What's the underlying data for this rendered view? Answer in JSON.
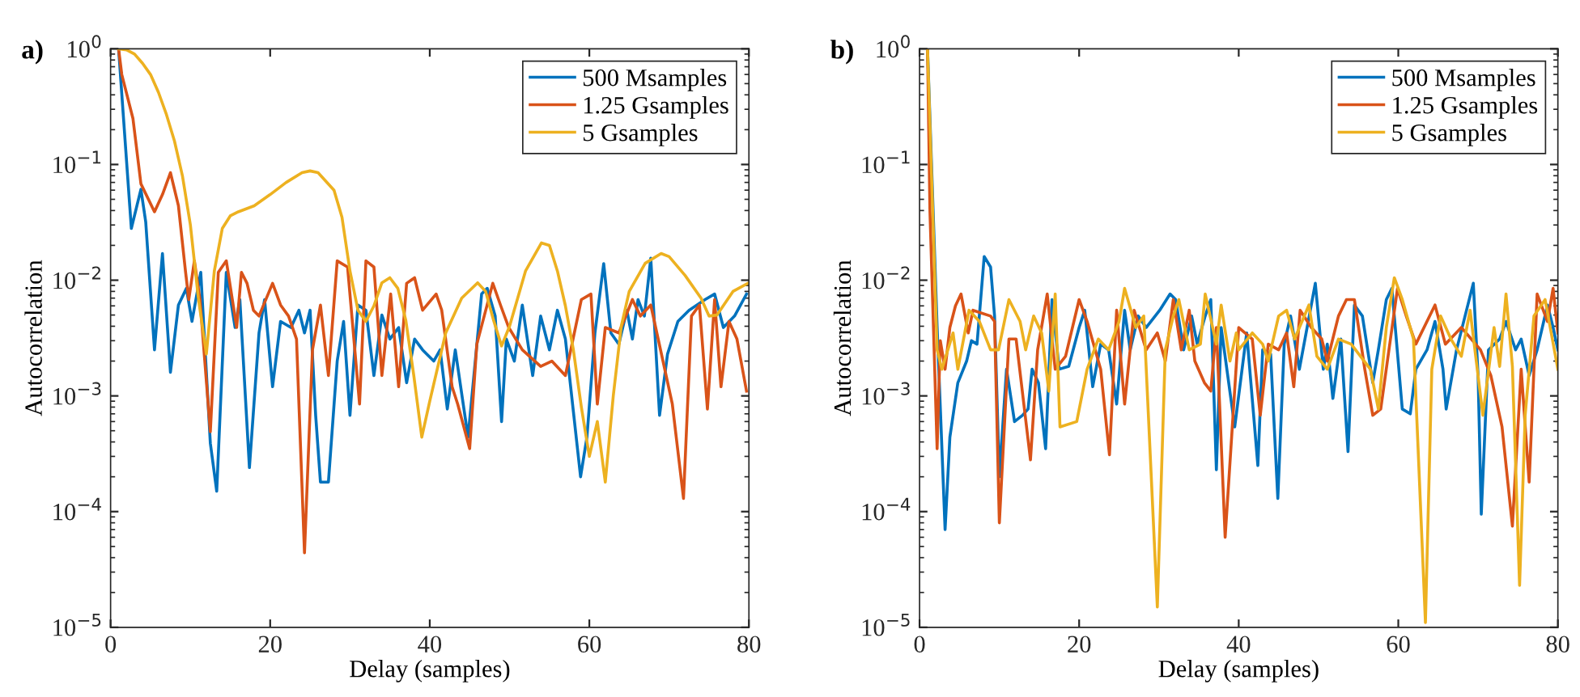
{
  "chart_data": [
    {
      "type": "line",
      "title": "a)",
      "xlabel": "Delay (samples)",
      "ylabel": "Autocorrelation",
      "log": "y",
      "legend": "top right",
      "line_style": "solid",
      "xlim": [
        0,
        80
      ],
      "ylim": [
        1e-05,
        1
      ],
      "xticks": [
        0,
        20,
        40,
        60,
        80
      ],
      "yticks": [
        {
          "value": 1e-05,
          "label": "10$^{−5}$"
        },
        {
          "value": 0.0001,
          "label": "10$^{−4}$"
        },
        {
          "value": 0.001,
          "label": "10$^{−3}$"
        },
        {
          "value": 0.01,
          "label": "10$^{−2}$"
        },
        {
          "value": 0.1,
          "label": "10$^{−1}$"
        },
        {
          "value": 1,
          "label": "10$^{0}$"
        }
      ],
      "series": [
        {
          "name": "500 Msamples",
          "color": "#0072bd",
          "x": [
            1,
            2.6,
            3.8,
            4.4,
            5.5,
            6.5,
            7.5,
            8.5,
            9.5,
            10.2,
            11.3,
            12.5,
            13.3,
            14.5,
            15.6,
            16.2,
            17.4,
            18.6,
            19.3,
            20.3,
            21.3,
            22.6,
            23.6,
            24.3,
            25,
            25.7,
            26.3,
            27.3,
            28.4,
            29.2,
            30,
            31,
            32,
            33,
            34,
            35,
            36.1,
            37.1,
            38.1,
            39.1,
            40.5,
            41.3,
            42.2,
            43.2,
            44.8,
            46.5,
            47.2,
            48.2,
            49,
            49.6,
            50.6,
            51.6,
            52.9,
            53.9,
            55,
            56,
            57,
            58.9,
            59.7,
            60.7,
            61.8,
            62.7,
            63.7,
            64.7,
            65.4,
            66.1,
            66.9,
            67.7,
            68.8,
            69.8,
            71.1,
            72.5,
            74.5,
            75.7,
            76.8,
            78.2,
            79.7
          ],
          "values": [
            1.0,
            0.028,
            0.061,
            0.032,
            0.0025,
            0.017,
            0.0016,
            0.0061,
            0.0085,
            0.0044,
            0.0117,
            0.00039,
            0.00015,
            0.0117,
            0.0039,
            0.0068,
            0.00024,
            0.0035,
            0.0068,
            0.0012,
            0.0044,
            0.0039,
            0.0055,
            0.0035,
            0.0055,
            0.00068,
            0.00018,
            0.00018,
            0.002,
            0.0044,
            0.00068,
            0.0061,
            0.0055,
            0.0015,
            0.005,
            0.0031,
            0.0039,
            0.0013,
            0.0031,
            0.0025,
            0.002,
            0.0025,
            0.00077,
            0.0025,
            0.00044,
            0.0076,
            0.0085,
            0.0049,
            0.0006,
            0.0031,
            0.002,
            0.0061,
            0.0015,
            0.0049,
            0.0025,
            0.0055,
            0.0031,
            0.0002,
            0.00044,
            0.0035,
            0.0139,
            0.0035,
            0.0028,
            0.0055,
            0.0031,
            0.0068,
            0.0049,
            0.0155,
            0.00068,
            0.0023,
            0.0044,
            0.0055,
            0.0068,
            0.0076,
            0.0039,
            0.0049,
            0.0076
          ]
        },
        {
          "name": "1.25 Gsamples",
          "color": "#d95319",
          "x": [
            1,
            1.4,
            2.8,
            3.8,
            5.5,
            6.5,
            7.5,
            8.5,
            9.4,
            9.8,
            10.5,
            11.2,
            12.5,
            13.5,
            14.5,
            15.8,
            16.4,
            17.1,
            17.9,
            18.6,
            20.3,
            21.3,
            22.3,
            23.3,
            24.3,
            25.3,
            26.3,
            27.3,
            28.4,
            29.7,
            31.2,
            32,
            33,
            34,
            35.1,
            36.1,
            37.1,
            38.1,
            39.1,
            40.8,
            41.5,
            42.8,
            43.5,
            45,
            45.9,
            47.9,
            48.9,
            49.9,
            51.6,
            53.9,
            55.3,
            57,
            59,
            60.2,
            61,
            62,
            63.7,
            65.4,
            66.4,
            67.7,
            70.4,
            71.8,
            72.8,
            73.8,
            74.8,
            75.7,
            76.5,
            77.5,
            78.5,
            79.7
          ],
          "values": [
            1.0,
            0.6,
            0.25,
            0.068,
            0.039,
            0.055,
            0.085,
            0.044,
            0.0117,
            0.0068,
            0.0147,
            0.0068,
            0.00049,
            0.0117,
            0.0147,
            0.0039,
            0.0117,
            0.0094,
            0.0055,
            0.0049,
            0.0094,
            0.0061,
            0.0049,
            0.0031,
            4.4e-05,
            0.0025,
            0.0061,
            0.0015,
            0.0147,
            0.013,
            0.00085,
            0.0147,
            0.013,
            0.0015,
            0.0076,
            0.0012,
            0.0094,
            0.0105,
            0.0055,
            0.0076,
            0.0055,
            0.0012,
            0.00085,
            0.00035,
            0.0028,
            0.0094,
            0.006,
            0.0039,
            0.0025,
            0.0018,
            0.002,
            0.0015,
            0.0068,
            0.0076,
            0.00085,
            0.0039,
            0.0035,
            0.0068,
            0.0049,
            0.0061,
            0.00085,
            0.00013,
            0.0049,
            0.0061,
            0.00077,
            0.0068,
            0.0012,
            0.0044,
            0.0031,
            0.0011
          ]
        },
        {
          "name": "5 Gsamples",
          "color": "#edb120",
          "x": [
            1,
            2,
            3,
            4,
            5,
            6,
            7,
            8,
            9,
            10,
            11,
            12,
            13,
            14,
            15,
            16,
            18,
            20,
            22,
            24,
            25,
            26,
            28,
            29,
            30,
            31,
            32,
            33,
            34,
            35,
            36,
            37,
            38,
            39,
            40,
            42,
            44,
            46,
            47,
            48,
            49,
            50,
            52,
            54,
            55,
            56,
            57,
            58,
            59,
            60,
            61,
            62,
            63,
            64,
            65,
            67,
            69,
            70,
            72,
            74,
            75,
            76,
            78,
            80
          ],
          "values": [
            1.0,
            0.98,
            0.9,
            0.75,
            0.6,
            0.42,
            0.27,
            0.16,
            0.08,
            0.03,
            0.007,
            0.0023,
            0.012,
            0.028,
            0.036,
            0.039,
            0.044,
            0.055,
            0.07,
            0.085,
            0.088,
            0.085,
            0.06,
            0.035,
            0.012,
            0.0055,
            0.0044,
            0.006,
            0.0095,
            0.0105,
            0.0085,
            0.0045,
            0.0015,
            0.00044,
            0.0009,
            0.0035,
            0.007,
            0.0095,
            0.008,
            0.0045,
            0.0027,
            0.004,
            0.012,
            0.021,
            0.02,
            0.012,
            0.006,
            0.0025,
            0.0008,
            0.0003,
            0.0006,
            0.00018,
            0.001,
            0.004,
            0.008,
            0.014,
            0.017,
            0.016,
            0.011,
            0.007,
            0.0049,
            0.005,
            0.008,
            0.0095
          ]
        }
      ]
    },
    {
      "type": "line",
      "title": "b)",
      "xlabel": "Delay (samples)",
      "ylabel": "Autocorrelation",
      "log": "y",
      "legend": "top right",
      "line_style": "solid",
      "xlim": [
        0,
        80
      ],
      "ylim": [
        1e-05,
        1
      ],
      "xticks": [
        0,
        20,
        40,
        60,
        80
      ],
      "yticks": [
        {
          "value": 1e-05,
          "label": "10$^{−5}$"
        },
        {
          "value": 0.0001,
          "label": "10$^{−4}$"
        },
        {
          "value": 0.001,
          "label": "10$^{−3}$"
        },
        {
          "value": 0.01,
          "label": "10$^{−2}$"
        },
        {
          "value": 0.1,
          "label": "10$^{−1}$"
        },
        {
          "value": 1,
          "label": "10$^{0}$"
        }
      ],
      "series": [
        {
          "name": "500 Msamples",
          "color": "#0072bd",
          "x": [
            1,
            2.2,
            3.2,
            3.8,
            4.8,
            5.9,
            6.5,
            7.2,
            8.1,
            8.9,
            9.4,
            10,
            10.9,
            11.9,
            12.9,
            13.6,
            14.1,
            14.9,
            15.8,
            16.6,
            17.5,
            18.7,
            20,
            20.7,
            21.7,
            22.7,
            23.7,
            24.7,
            25.7,
            26.4,
            27.4,
            28.4,
            30.1,
            31.4,
            32.1,
            33.1,
            34.1,
            34.8,
            35.8,
            36.5,
            37.2,
            37.8,
            39.5,
            41,
            42.4,
            43,
            44,
            44.9,
            45.7,
            46.5,
            47.6,
            49.6,
            50.6,
            51.1,
            51.8,
            52.8,
            53.7,
            54.5,
            55.5,
            56.8,
            57.5,
            58.5,
            59.2,
            60.5,
            61.5,
            62.2,
            63.6,
            64.6,
            65.6,
            66,
            67.3,
            69.4,
            70,
            70.4,
            71.3,
            72.7,
            73.5,
            74.7,
            75.4,
            76.4,
            77.4,
            78.7,
            79.4,
            80
          ],
          "values": [
            1.0,
            0.004,
            7e-05,
            0.00044,
            0.0013,
            0.002,
            0.003,
            0.0028,
            0.016,
            0.013,
            0.0049,
            0.0002,
            0.0017,
            0.0006,
            0.00068,
            0.00077,
            0.0017,
            0.0013,
            0.00035,
            0.0068,
            0.0017,
            0.0018,
            0.0039,
            0.0055,
            0.0012,
            0.0028,
            0.0025,
            0.00085,
            0.0055,
            0.0025,
            0.0049,
            0.0039,
            0.0055,
            0.0076,
            0.0068,
            0.0025,
            0.0049,
            0.0028,
            0.0049,
            0.0068,
            0.00023,
            0.0039,
            0.00054,
            0.0035,
            0.00025,
            0.0025,
            0.0023,
            0.00013,
            0.0028,
            0.0049,
            0.0017,
            0.0094,
            0.0017,
            0.0028,
            0.00095,
            0.0031,
            0.00033,
            0.0061,
            0.0049,
            0.0013,
            0.0025,
            0.0068,
            0.0085,
            0.00077,
            0.0007,
            0.0017,
            0.0025,
            0.0044,
            0.0017,
            0.00077,
            0.0025,
            0.0094,
            0.0015,
            9.5e-05,
            0.0025,
            0.0031,
            0.0044,
            0.0025,
            0.0031,
            0.0015,
            0.0025,
            0.0061,
            0.0039,
            0.0025
          ]
        },
        {
          "name": "1.25 Gsamples",
          "color": "#d95319",
          "x": [
            1,
            1.3,
            2.2,
            2.6,
            3.2,
            3.8,
            4.5,
            5.2,
            6.1,
            6.7,
            8.9,
            9.4,
            10,
            11.2,
            12.1,
            13.9,
            14.8,
            16,
            17,
            18.3,
            20,
            21,
            22.7,
            23.8,
            24.7,
            25.7,
            26.9,
            28.4,
            29.8,
            30.8,
            31.8,
            32.8,
            33.8,
            34.5,
            35.7,
            36.5,
            37.2,
            38.3,
            40,
            41.7,
            42.7,
            43.7,
            45,
            46,
            46.9,
            47.7,
            49.1,
            50.4,
            51.1,
            52.5,
            53.5,
            54.5,
            55.8,
            56.8,
            57.8,
            59.9,
            61,
            62.2,
            64.6,
            65.9,
            67.9,
            70.3,
            71.6,
            73,
            74.3,
            75.4,
            76.4,
            77.4,
            78.7,
            79.4,
            80
          ],
          "values": [
            1.0,
            0.04,
            0.00035,
            0.003,
            0.0017,
            0.0039,
            0.006,
            0.0076,
            0.0035,
            0.0055,
            0.0049,
            0.0044,
            8e-05,
            0.0031,
            0.0031,
            0.00028,
            0.0025,
            0.0076,
            0.0017,
            0.0022,
            0.0068,
            0.0044,
            0.0017,
            0.00031,
            0.0055,
            0.00085,
            0.0055,
            0.0025,
            0.0035,
            0.002,
            0.0068,
            0.0025,
            0.0055,
            0.002,
            0.0013,
            0.0011,
            0.0039,
            6e-05,
            0.0039,
            0.0031,
            0.00068,
            0.0028,
            0.0025,
            0.0035,
            0.0012,
            0.0055,
            0.0039,
            0.0031,
            0.002,
            0.0049,
            0.0068,
            0.0068,
            0.0017,
            0.00068,
            0.00077,
            0.0085,
            0.0049,
            0.0028,
            0.0061,
            0.0028,
            0.0039,
            0.0025,
            0.0015,
            0.00054,
            7.5e-05,
            0.0017,
            0.00018,
            0.0076,
            0.0044,
            0.0085,
            0.0035
          ]
        },
        {
          "name": "5 Gsamples",
          "color": "#edb120",
          "x": [
            1,
            2.2,
            2.8,
            4.2,
            4.8,
            6.2,
            7.5,
            8.9,
            9.9,
            11.2,
            12.6,
            13.3,
            14.3,
            15.3,
            16.2,
            17,
            17.6,
            19.7,
            21,
            22.4,
            23.7,
            25,
            25.7,
            27.1,
            28.1,
            29.8,
            30.8,
            31.8,
            32.5,
            33.8,
            35.2,
            35.8,
            37.2,
            37.8,
            38.9,
            39.7,
            40,
            41.7,
            43,
            43.7,
            45,
            46,
            47,
            48.8,
            49.8,
            51.1,
            52.5,
            54.1,
            56.5,
            57.5,
            58.5,
            59.5,
            60.5,
            61.9,
            63.4,
            64.2,
            65.3,
            66.6,
            67.9,
            69,
            70.6,
            72,
            72.7,
            73.5,
            74.3,
            75.2,
            75.9,
            77,
            78.4,
            80
          ],
          "values": [
            1.0,
            0.0025,
            0.0017,
            0.0035,
            0.0017,
            0.0055,
            0.0044,
            0.0025,
            0.0025,
            0.0068,
            0.0044,
            0.0025,
            0.0049,
            0.0035,
            0.0011,
            0.0076,
            0.00054,
            0.0006,
            0.0017,
            0.0031,
            0.0025,
            0.0044,
            0.0085,
            0.0039,
            0.0049,
            1.5e-05,
            0.0025,
            0.0049,
            0.0068,
            0.0025,
            0.0028,
            0.0076,
            0.0028,
            0.0061,
            0.002,
            0.0035,
            0.0025,
            0.0035,
            0.0028,
            0.002,
            0.0049,
            0.0055,
            0.0031,
            0.0061,
            0.0022,
            0.0017,
            0.0031,
            0.0028,
            0.0017,
            0.00077,
            0.0039,
            0.0105,
            0.0068,
            0.0031,
            1.1e-05,
            0.0017,
            0.0049,
            0.0031,
            0.0022,
            0.0055,
            0.00068,
            0.0039,
            0.0018,
            0.0076,
            0.0018,
            2.3e-05,
            0.00068,
            0.0049,
            0.0068,
            0.0017
          ]
        }
      ]
    }
  ]
}
